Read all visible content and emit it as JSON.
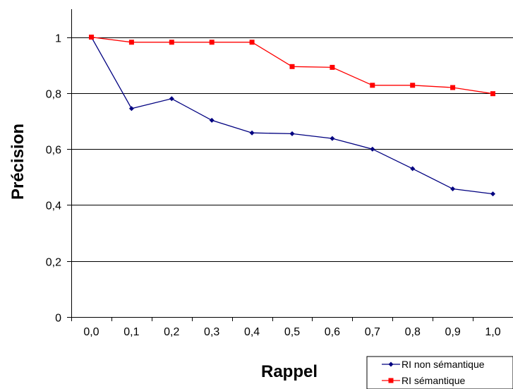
{
  "chart_data": {
    "type": "line",
    "title": "",
    "xlabel": "Rappel",
    "ylabel": "Précision",
    "x_tick_labels": [
      "0,0",
      "0,1",
      "0,2",
      "0,3",
      "0,4",
      "0,5",
      "0,6",
      "0,7",
      "0,8",
      "0,9",
      "1,0"
    ],
    "y_tick_labels": [
      "0",
      "0,2",
      "0,4",
      "0,6",
      "0,8",
      "1"
    ],
    "y_ticks": [
      0,
      0.2,
      0.4,
      0.6,
      0.8,
      1.0
    ],
    "x": [
      0.0,
      0.1,
      0.2,
      0.3,
      0.4,
      0.5,
      0.6,
      0.7,
      0.8,
      0.9,
      1.0
    ],
    "ylim": [
      0,
      1.1
    ],
    "grid": "horizontal",
    "legend_position": "bottom-right",
    "series": [
      {
        "name": "RI non sémantique",
        "color": "#000080",
        "marker": "diamond",
        "values": [
          1.0,
          0.745,
          0.78,
          0.703,
          0.658,
          0.655,
          0.638,
          0.6,
          0.53,
          0.458,
          0.44
        ]
      },
      {
        "name": "RI sémantique",
        "color": "#ff0000",
        "marker": "square",
        "values": [
          1.0,
          0.982,
          0.982,
          0.982,
          0.982,
          0.895,
          0.892,
          0.828,
          0.828,
          0.82,
          0.798
        ]
      }
    ]
  }
}
